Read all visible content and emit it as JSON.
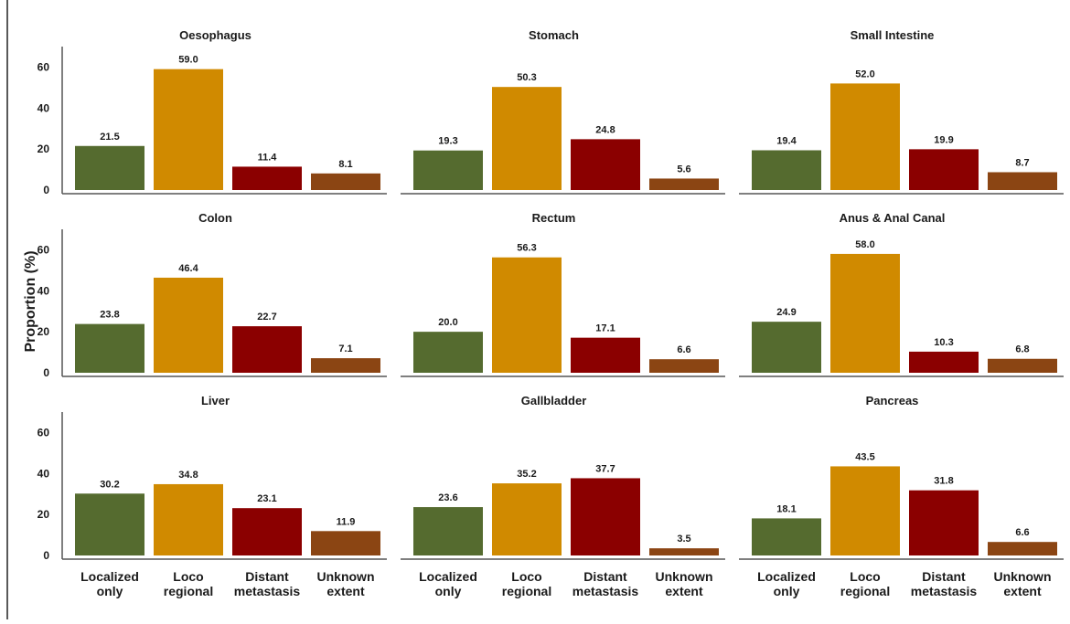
{
  "chart_data": {
    "type": "bar",
    "ylabel": "Proportion (%)",
    "ylim": [
      0,
      70
    ],
    "yticks": [
      0,
      20,
      40,
      60
    ],
    "categories": [
      "Localized only",
      "Loco regional",
      "Distant metastasis",
      "Unknown extent"
    ],
    "category_lines": [
      [
        "Localized",
        "only"
      ],
      [
        "Loco",
        "regional"
      ],
      [
        "Distant",
        "metastasis"
      ],
      [
        "Unknown",
        "extent"
      ]
    ],
    "colors": [
      "#556b2f",
      "#d08a00",
      "#8b0000",
      "#8b4513"
    ],
    "grid": false,
    "panels": [
      {
        "title": "Oesophagus",
        "values": [
          21.5,
          59.0,
          11.4,
          8.1
        ],
        "labels": [
          "21.5",
          "59.0",
          "11.4",
          "8.1"
        ]
      },
      {
        "title": "Stomach",
        "values": [
          19.3,
          50.3,
          24.8,
          5.6
        ],
        "labels": [
          "19.3",
          "50.3",
          "24.8",
          "5.6"
        ]
      },
      {
        "title": "Small Intestine",
        "values": [
          19.4,
          52.0,
          19.9,
          8.7
        ],
        "labels": [
          "19.4",
          "52.0",
          "19.9",
          "8.7"
        ]
      },
      {
        "title": "Colon",
        "values": [
          23.8,
          46.4,
          22.7,
          7.1
        ],
        "labels": [
          "23.8",
          "46.4",
          "22.7",
          "7.1"
        ]
      },
      {
        "title": "Rectum",
        "values": [
          20.0,
          56.3,
          17.1,
          6.6
        ],
        "labels": [
          "20.0",
          "56.3",
          "17.1",
          "6.6"
        ]
      },
      {
        "title": "Anus & Anal Canal",
        "values": [
          24.9,
          58.0,
          10.3,
          6.8
        ],
        "labels": [
          "24.9",
          "58.0",
          "10.3",
          "6.8"
        ]
      },
      {
        "title": "Liver",
        "values": [
          30.2,
          34.8,
          23.1,
          11.9
        ],
        "labels": [
          "30.2",
          "34.8",
          "23.1",
          "11.9"
        ]
      },
      {
        "title": "Gallbladder",
        "values": [
          23.6,
          35.2,
          37.7,
          3.5
        ],
        "labels": [
          "23.6",
          "35.2",
          "37.7",
          "3.5"
        ]
      },
      {
        "title": "Pancreas",
        "values": [
          18.1,
          43.5,
          31.8,
          6.6
        ],
        "labels": [
          "18.1",
          "43.5",
          "31.8",
          "6.6"
        ]
      }
    ]
  }
}
